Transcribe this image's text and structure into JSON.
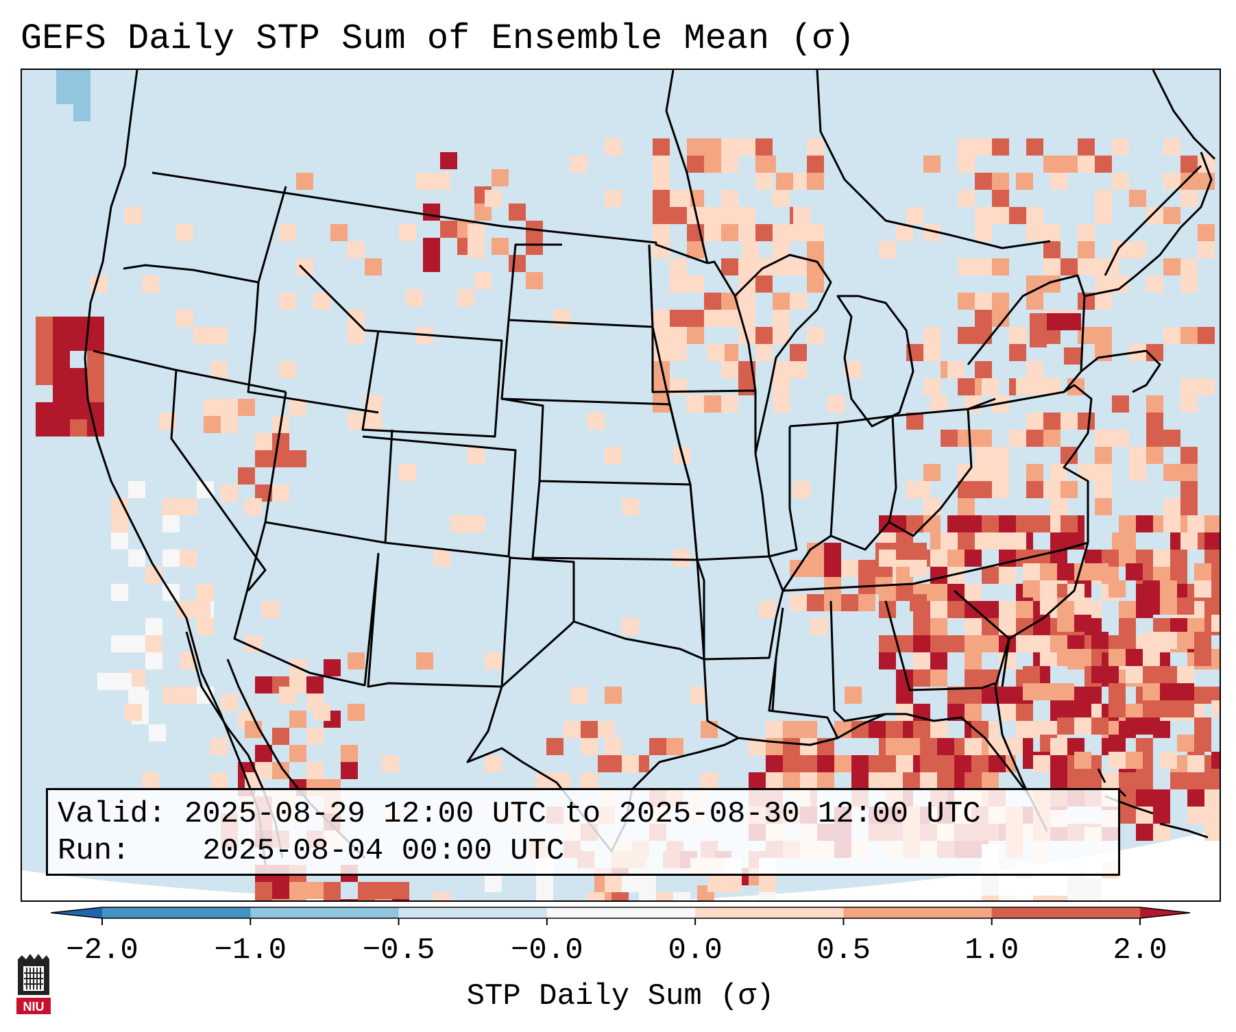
{
  "title": "GEFS Daily STP Sum of Ensemble Mean (σ)",
  "info": {
    "valid_label": "Valid:",
    "valid_value": "2025-08-29 12:00 UTC to 2025-08-30 12:00 UTC",
    "run_label": "Run:",
    "run_value": "2025-08-04 00:00 UTC"
  },
  "colorbar": {
    "label": "STP Daily Sum (σ)",
    "ticks": [
      "−2.0",
      "−1.0",
      "−0.5",
      "−0.0",
      "0.0",
      "0.5",
      "1.0",
      "2.0"
    ],
    "colors": [
      "#4393c3",
      "#92c5de",
      "#d1e5f0",
      "#f7f7f7",
      "#fddbc7",
      "#f4a582",
      "#d6604d",
      "#b2182b"
    ],
    "under_color": "#2166ac",
    "over_color": "#b2182b"
  },
  "map": {
    "background_color": "#d1e5f0",
    "outside_color": "#ffffff",
    "border_color": "#000000",
    "field_description": [
      {
        "region": "Southeast US / Florida / Atlantic",
        "level": "1.0 to 2.0"
      },
      {
        "region": "Gulf of Mexico",
        "level": "1.0 to 2.0"
      },
      {
        "region": "Northern Plains / Upper Midwest",
        "level": "0.0 to 0.5"
      },
      {
        "region": "Northeast US / New England",
        "level": "0.0 to 1.0"
      },
      {
        "region": "Pacific coast off Northern California",
        "level": "1.0 to 2.0"
      },
      {
        "region": "Baja California / Sea of Cortez",
        "level": "-0.0 to 0.0"
      }
    ]
  },
  "logo": {
    "text": "NIU",
    "color": "#c8102e"
  }
}
